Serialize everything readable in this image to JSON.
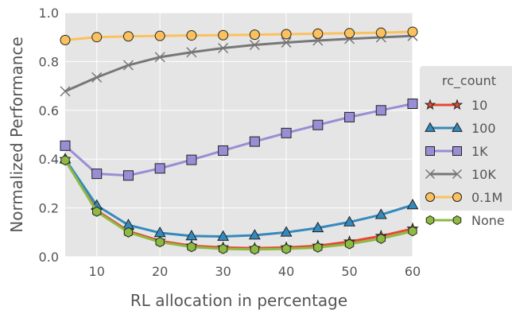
{
  "chart_data": {
    "type": "line",
    "title": "",
    "xlabel": "RL allocation in percentage",
    "ylabel": "Normalized Performance",
    "xlim": [
      5,
      60
    ],
    "ylim": [
      0.0,
      1.0
    ],
    "xticks": [
      10,
      20,
      30,
      40,
      50,
      60
    ],
    "yticks": [
      0.0,
      0.2,
      0.4,
      0.6,
      0.8,
      1.0
    ],
    "grid": true,
    "legend": {
      "title": "rc_count",
      "placement": "center-right, outside"
    },
    "x": [
      5,
      10,
      15,
      20,
      25,
      30,
      35,
      40,
      45,
      50,
      55,
      60
    ],
    "series": [
      {
        "name": "10",
        "marker": "star",
        "color": "#e24a33",
        "values": [
          0.4,
          0.19,
          0.105,
          0.065,
          0.045,
          0.038,
          0.035,
          0.038,
          0.045,
          0.062,
          0.085,
          0.115
        ]
      },
      {
        "name": "100",
        "marker": "triangle",
        "color": "#348abd",
        "values": [
          0.4,
          0.21,
          0.13,
          0.098,
          0.085,
          0.083,
          0.088,
          0.1,
          0.118,
          0.142,
          0.172,
          0.212
        ]
      },
      {
        "name": "1K",
        "marker": "square",
        "color": "#988ed5",
        "values": [
          0.455,
          0.34,
          0.333,
          0.362,
          0.397,
          0.435,
          0.472,
          0.507,
          0.54,
          0.572,
          0.6,
          0.627
        ]
      },
      {
        "name": "10K",
        "marker": "x",
        "color": "#777777",
        "values": [
          0.678,
          0.735,
          0.785,
          0.818,
          0.838,
          0.855,
          0.868,
          0.878,
          0.886,
          0.893,
          0.899,
          0.905
        ]
      },
      {
        "name": "0.1M",
        "marker": "circle",
        "color": "#fbc15e",
        "values": [
          0.888,
          0.9,
          0.903,
          0.905,
          0.907,
          0.908,
          0.91,
          0.912,
          0.914,
          0.916,
          0.918,
          0.922
        ]
      },
      {
        "name": "None",
        "marker": "hexagon",
        "color": "#8eba42",
        "values": [
          0.395,
          0.185,
          0.1,
          0.06,
          0.04,
          0.032,
          0.03,
          0.032,
          0.038,
          0.052,
          0.074,
          0.105
        ]
      }
    ]
  }
}
